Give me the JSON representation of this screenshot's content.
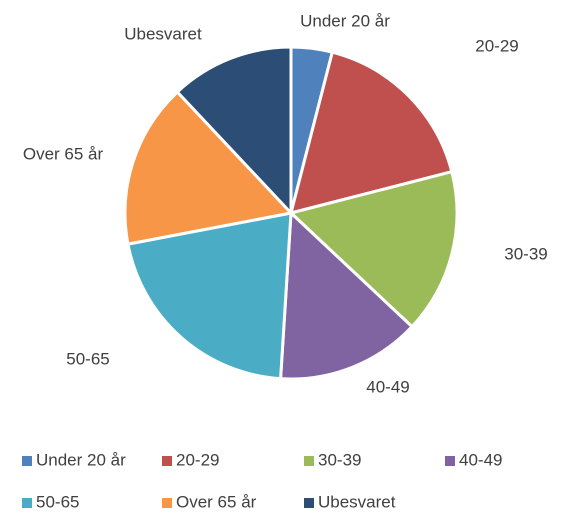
{
  "chart_data": {
    "type": "pie",
    "categories": [
      "Under 20 år",
      "20-29",
      "30-39",
      "40-49",
      "50-65",
      "Over 65 år",
      "Ubesvaret"
    ],
    "values": [
      4,
      17,
      16,
      14,
      21,
      16,
      12
    ],
    "colors": [
      "#4f81bd",
      "#c0504d",
      "#9bbb59",
      "#8064a2",
      "#4bacc6",
      "#f79646",
      "#2c4d75"
    ],
    "legend": "bottom"
  }
}
